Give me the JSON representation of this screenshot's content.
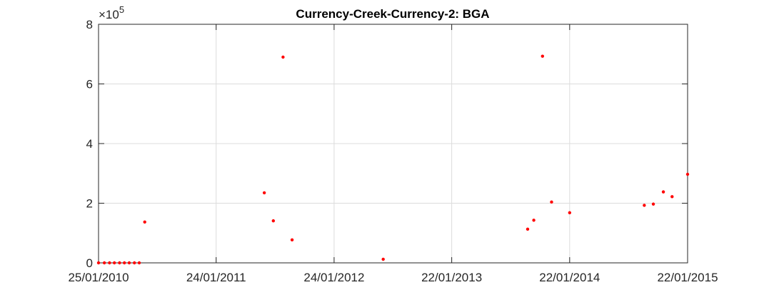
{
  "chart_data": {
    "type": "scatter",
    "title": "Currency-Creek-Currency-2: BGA",
    "xlabel": "",
    "ylabel": "",
    "y_exponent_label": {
      "base": "×10",
      "exponent": "5"
    },
    "xlim": [
      "2010-01-25",
      "2015-01-22"
    ],
    "ylim": [
      0,
      800000
    ],
    "y_ticks": [
      {
        "value": 0,
        "label": "0"
      },
      {
        "value": 200000,
        "label": "2"
      },
      {
        "value": 400000,
        "label": "4"
      },
      {
        "value": 600000,
        "label": "6"
      },
      {
        "value": 800000,
        "label": "8"
      }
    ],
    "x_ticks": [
      {
        "date": "2010-01-25",
        "label": "25/01/2010"
      },
      {
        "date": "2011-01-24",
        "label": "24/01/2011"
      },
      {
        "date": "2012-01-24",
        "label": "24/01/2012"
      },
      {
        "date": "2013-01-22",
        "label": "22/01/2013"
      },
      {
        "date": "2014-01-22",
        "label": "22/01/2014"
      },
      {
        "date": "2015-01-22",
        "label": "22/01/2015"
      }
    ],
    "grid": true,
    "marker_color": "#ff0000",
    "points": [
      {
        "x": "2010-01-25",
        "y": 0
      },
      {
        "x": "2010-02-12",
        "y": 0
      },
      {
        "x": "2010-02-28",
        "y": 0
      },
      {
        "x": "2010-03-15",
        "y": 0
      },
      {
        "x": "2010-03-31",
        "y": 0
      },
      {
        "x": "2010-04-15",
        "y": 0
      },
      {
        "x": "2010-04-30",
        "y": 0
      },
      {
        "x": "2010-05-16",
        "y": 0
      },
      {
        "x": "2010-05-31",
        "y": 0
      },
      {
        "x": "2010-06-17",
        "y": 137000
      },
      {
        "x": "2011-06-22",
        "y": 235000
      },
      {
        "x": "2011-07-20",
        "y": 141000
      },
      {
        "x": "2011-08-19",
        "y": 690000
      },
      {
        "x": "2011-09-16",
        "y": 77000
      },
      {
        "x": "2012-06-24",
        "y": 12000
      },
      {
        "x": "2013-09-14",
        "y": 113000
      },
      {
        "x": "2013-10-03",
        "y": 143000
      },
      {
        "x": "2013-10-30",
        "y": 693000
      },
      {
        "x": "2013-11-27",
        "y": 204000
      },
      {
        "x": "2014-01-22",
        "y": 168000
      },
      {
        "x": "2014-09-10",
        "y": 193000
      },
      {
        "x": "2014-10-08",
        "y": 197000
      },
      {
        "x": "2014-11-08",
        "y": 238000
      },
      {
        "x": "2014-12-05",
        "y": 222000
      },
      {
        "x": "2015-01-22",
        "y": 297000
      }
    ]
  }
}
